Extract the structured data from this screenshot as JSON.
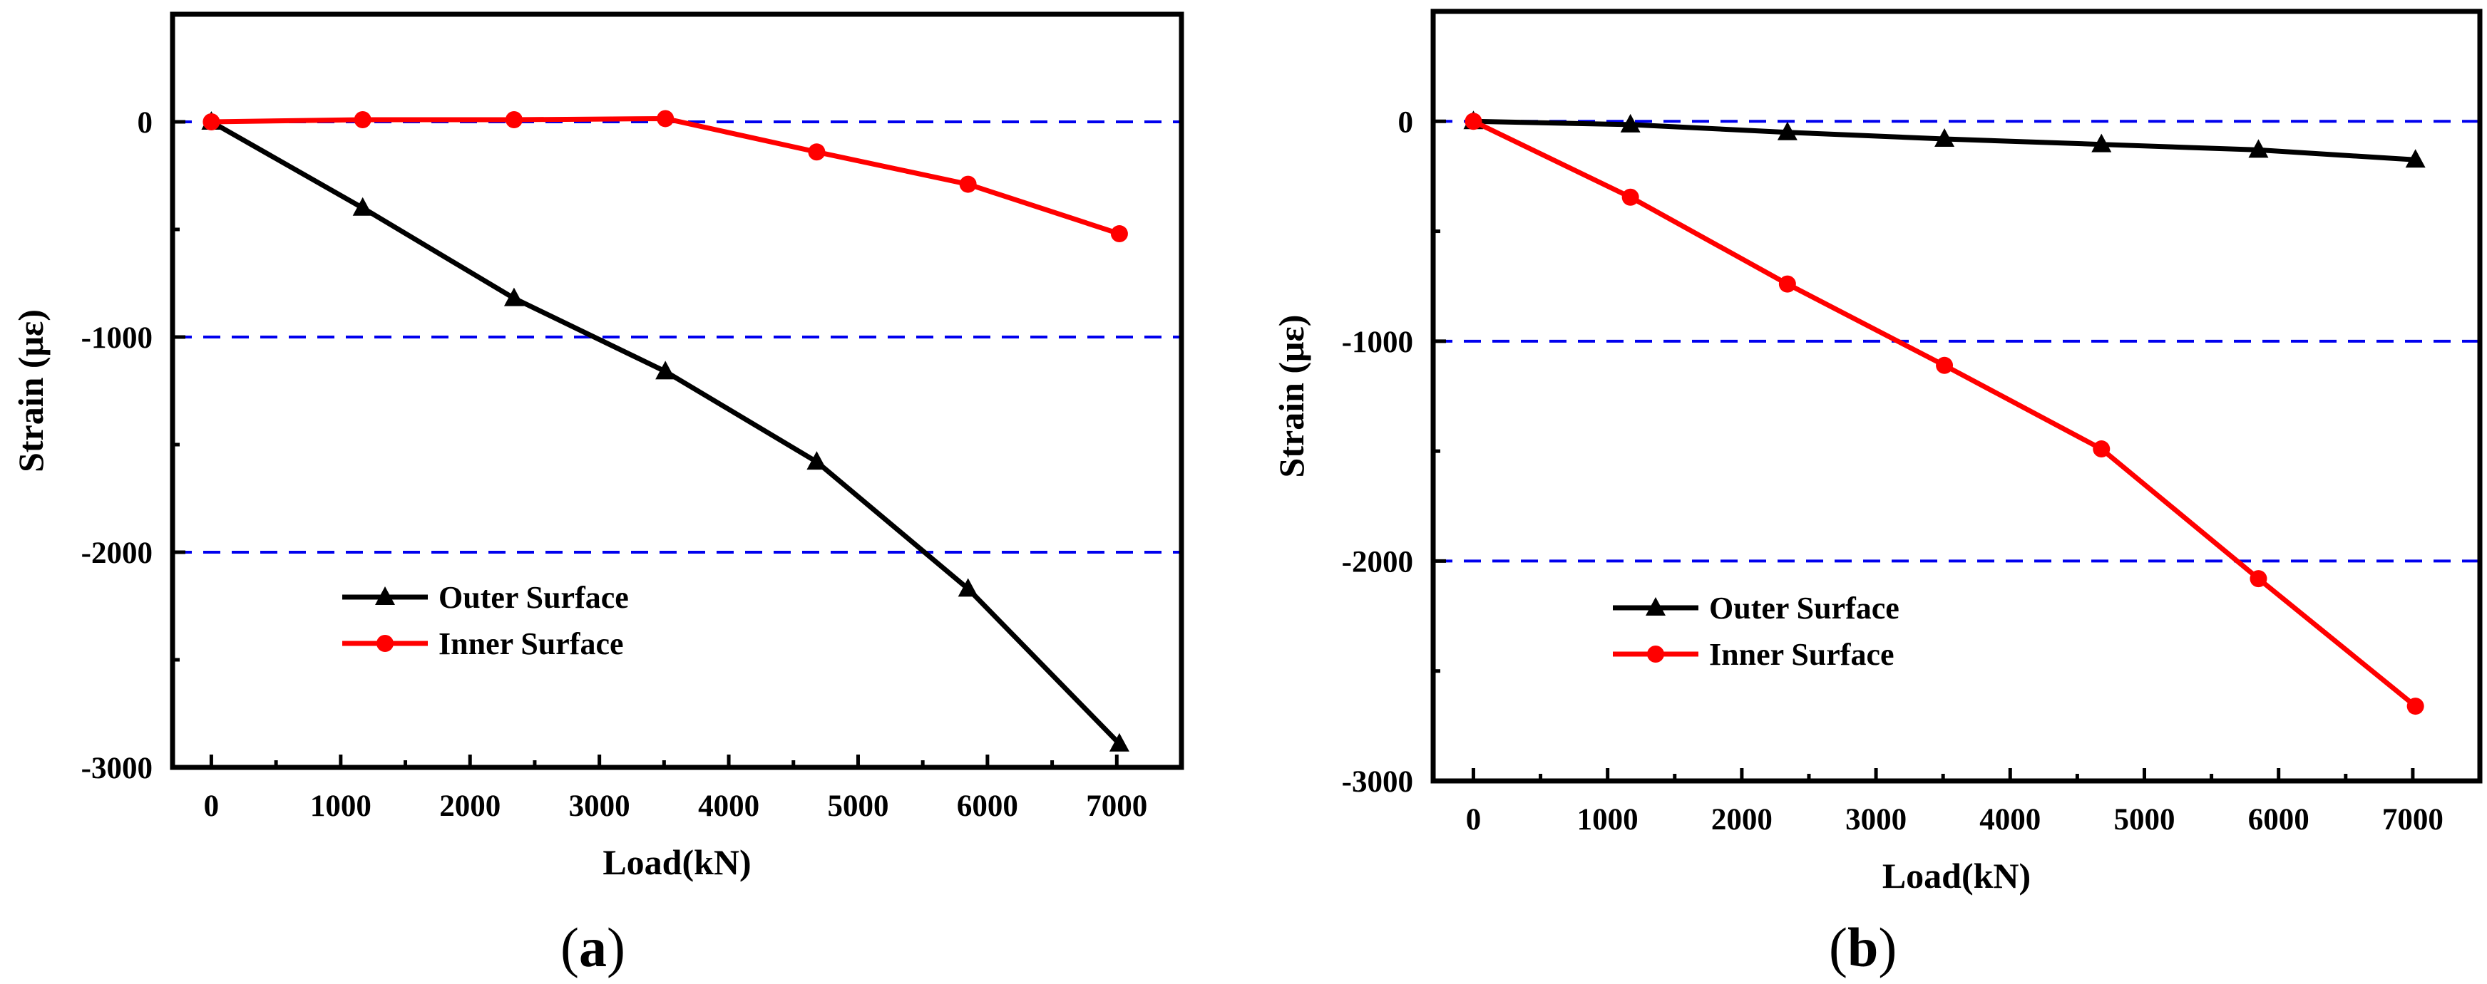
{
  "chart_data": [
    {
      "type": "line",
      "panel_label": "a",
      "xlabel": "Load(kN)",
      "ylabel": "Strain (με)",
      "xlim": [
        -300,
        7500
      ],
      "ylim": [
        -3000,
        500
      ],
      "xticks": [
        0,
        1000,
        2000,
        3000,
        4000,
        5000,
        6000,
        7000
      ],
      "yticks": [
        0,
        -1000,
        -2000,
        -3000
      ],
      "reference_lines": [
        0,
        -1000,
        -2000
      ],
      "legend_position": "lower-left",
      "series": [
        {
          "name": "Outer Surface",
          "color": "#000000",
          "marker": "triangle",
          "x": [
            0,
            1170,
            2340,
            3510,
            4680,
            5850,
            7020
          ],
          "y": [
            0,
            -400,
            -820,
            -1160,
            -1580,
            -2170,
            -2890
          ]
        },
        {
          "name": "Inner Surface",
          "color": "#ff0000",
          "marker": "circle",
          "x": [
            0,
            1170,
            2340,
            3510,
            4680,
            5850,
            7020
          ],
          "y": [
            0,
            10,
            10,
            15,
            -140,
            -290,
            -520
          ]
        }
      ]
    },
    {
      "type": "line",
      "panel_label": "b",
      "xlabel": "Load(kN)",
      "ylabel": "Strain (με)",
      "xlim": [
        -300,
        7500
      ],
      "ylim": [
        -3000,
        500
      ],
      "xticks": [
        0,
        1000,
        2000,
        3000,
        4000,
        5000,
        6000,
        7000
      ],
      "yticks": [
        0,
        -1000,
        -2000,
        -3000
      ],
      "reference_lines": [
        0,
        -1000,
        -2000
      ],
      "legend_position": "lower-left",
      "series": [
        {
          "name": "Outer Surface",
          "color": "#000000",
          "marker": "triangle",
          "x": [
            0,
            1170,
            2340,
            3510,
            4680,
            5850,
            7020
          ],
          "y": [
            0,
            -15,
            -50,
            -80,
            -105,
            -130,
            -175
          ]
        },
        {
          "name": "Inner Surface",
          "color": "#ff0000",
          "marker": "circle",
          "x": [
            0,
            1170,
            2340,
            3510,
            4680,
            5850,
            7020
          ],
          "y": [
            0,
            -345,
            -740,
            -1110,
            -1490,
            -2080,
            -2660
          ]
        }
      ]
    }
  ]
}
